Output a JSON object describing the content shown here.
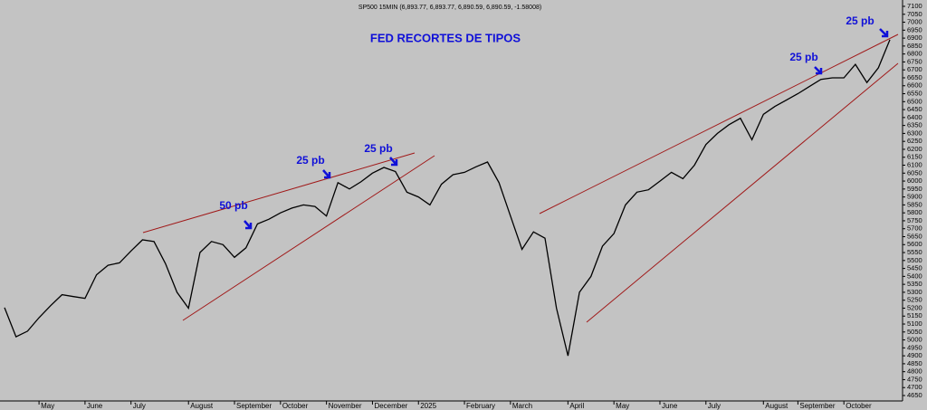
{
  "chart_data": {
    "type": "line",
    "header": "SP500 15MIN (6,893.77, 6,893.77, 6,890.59, 6,890.59, -1.58008)",
    "title": "FED RECORTES DE TIPOS",
    "annotations": [
      "50 pb",
      "25 pb",
      "25 pb",
      "25 pb",
      "25 pb"
    ],
    "categories": [
      null,
      null,
      null,
      "May",
      null,
      null,
      null,
      "June",
      null,
      null,
      null,
      "July",
      null,
      null,
      null,
      null,
      "August",
      null,
      null,
      null,
      "September",
      null,
      null,
      null,
      "October",
      null,
      null,
      null,
      "November",
      null,
      null,
      null,
      "December",
      null,
      null,
      null,
      "2025",
      null,
      null,
      null,
      "February",
      null,
      null,
      null,
      "March",
      null,
      null,
      null,
      null,
      "April",
      null,
      null,
      null,
      "May",
      null,
      null,
      null,
      "June",
      null,
      null,
      null,
      "July",
      null,
      null,
      null,
      null,
      "August",
      null,
      null,
      "September",
      null,
      null,
      null,
      "October",
      null,
      null,
      null,
      null
    ],
    "series": [
      {
        "color": "#000000",
        "values": [
          5203,
          5020,
          5055,
          5140,
          5215,
          5285,
          5273,
          5262,
          5410,
          5470,
          5485,
          5560,
          5630,
          5620,
          5480,
          5300,
          5200,
          5550,
          5620,
          5600,
          5520,
          5580,
          5730,
          5760,
          5800,
          5830,
          5850,
          5840,
          5780,
          5990,
          5950,
          5995,
          6050,
          6086,
          6060,
          5930,
          5900,
          5850,
          5980,
          6040,
          6055,
          6090,
          6120,
          5990,
          5780,
          5570,
          5680,
          5640,
          5200,
          4900,
          5300,
          5400,
          5590,
          5670,
          5850,
          5930,
          5945,
          6000,
          6055,
          6015,
          6100,
          6230,
          6300,
          6355,
          6395,
          6260,
          6420,
          6470,
          6510,
          6550,
          6595,
          6640,
          6650,
          6650,
          6735,
          6620,
          6713,
          6890
        ]
      }
    ],
    "ylim": [
      4650,
      7100
    ],
    "yticks": [
      4650,
      4700,
      4750,
      4800,
      4850,
      4900,
      4950,
      5000,
      5050,
      5100,
      5150,
      5200,
      5250,
      5300,
      5350,
      5400,
      5450,
      5500,
      5550,
      5600,
      5650,
      5700,
      5750,
      5800,
      5850,
      5900,
      5950,
      6000,
      6050,
      6100,
      6150,
      6200,
      6250,
      6300,
      6350,
      6400,
      6450,
      6500,
      6550,
      6600,
      6650,
      6700,
      6750,
      6800,
      6850,
      6900,
      6950,
      7000,
      7050,
      7100
    ],
    "y_axis_side": "right"
  }
}
